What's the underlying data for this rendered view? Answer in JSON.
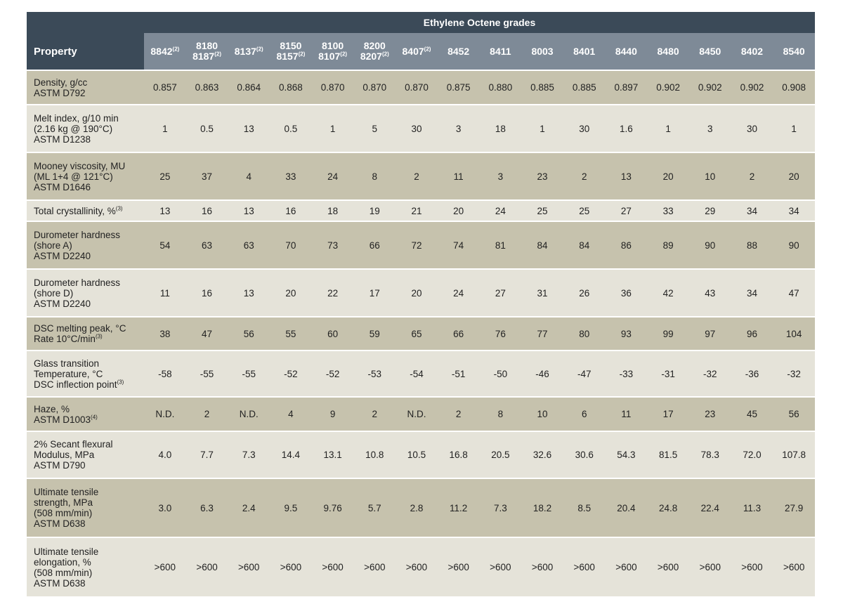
{
  "group_title": "Ethylene Octene grades",
  "property_header": "Property",
  "grades": [
    {
      "lines": [
        "8842"
      ],
      "sup": "(2)"
    },
    {
      "lines": [
        "8180",
        "8187"
      ],
      "sup": "(2)"
    },
    {
      "lines": [
        "8137"
      ],
      "sup": "(2)"
    },
    {
      "lines": [
        "8150",
        "8157"
      ],
      "sup": "(2)"
    },
    {
      "lines": [
        "8100",
        "8107"
      ],
      "sup": "(2)"
    },
    {
      "lines": [
        "8200",
        "8207"
      ],
      "sup": "(2)"
    },
    {
      "lines": [
        "8407"
      ],
      "sup": "(2)"
    },
    {
      "lines": [
        "8452"
      ],
      "sup": ""
    },
    {
      "lines": [
        "8411"
      ],
      "sup": ""
    },
    {
      "lines": [
        "8003"
      ],
      "sup": ""
    },
    {
      "lines": [
        "8401"
      ],
      "sup": ""
    },
    {
      "lines": [
        "8440"
      ],
      "sup": ""
    },
    {
      "lines": [
        "8480"
      ],
      "sup": ""
    },
    {
      "lines": [
        "8450"
      ],
      "sup": ""
    },
    {
      "lines": [
        "8402"
      ],
      "sup": ""
    },
    {
      "lines": [
        "8540"
      ],
      "sup": ""
    }
  ],
  "rows": [
    {
      "name": "density",
      "shade": "dark",
      "label": [
        "Density, g/cc",
        "ASTM D792"
      ],
      "label_sup": "",
      "values": [
        "0.857",
        "0.863",
        "0.864",
        "0.868",
        "0.870",
        "0.870",
        "0.870",
        "0.875",
        "0.880",
        "0.885",
        "0.885",
        "0.897",
        "0.902",
        "0.902",
        "0.902",
        "0.908"
      ]
    },
    {
      "name": "melt-index",
      "shade": "light",
      "label": [
        "Melt index, g/10 min",
        "(2.16 kg @ 190°C)",
        "ASTM D1238"
      ],
      "label_sup": "",
      "values": [
        "1",
        "0.5",
        "13",
        "0.5",
        "1",
        "5",
        "30",
        "3",
        "18",
        "1",
        "30",
        "1.6",
        "1",
        "3",
        "30",
        "1"
      ]
    },
    {
      "name": "mooney-viscosity",
      "shade": "dark",
      "label": [
        "Mooney viscosity, MU",
        "(ML 1+4 @ 121°C)",
        "ASTM D1646"
      ],
      "label_sup": "",
      "values": [
        "25",
        "37",
        "4",
        "33",
        "24",
        "8",
        "2",
        "11",
        "3",
        "23",
        "2",
        "13",
        "20",
        "10",
        "2",
        "20"
      ]
    },
    {
      "name": "total-crystallinity",
      "shade": "light",
      "label": [
        "Total crystallinity, %"
      ],
      "label_sup": "(3)",
      "values": [
        "13",
        "16",
        "13",
        "16",
        "18",
        "19",
        "21",
        "20",
        "24",
        "25",
        "25",
        "27",
        "33",
        "29",
        "34",
        "34"
      ]
    },
    {
      "name": "durometer-shore-a",
      "shade": "dark",
      "label": [
        "Durometer hardness",
        "(shore A)",
        "ASTM D2240"
      ],
      "label_sup": "",
      "values": [
        "54",
        "63",
        "63",
        "70",
        "73",
        "66",
        "72",
        "74",
        "81",
        "84",
        "84",
        "86",
        "89",
        "90",
        "88",
        "90"
      ]
    },
    {
      "name": "durometer-shore-d",
      "shade": "light",
      "label": [
        "Durometer hardness",
        "(shore D)",
        "ASTM D2240"
      ],
      "label_sup": "",
      "values": [
        "11",
        "16",
        "13",
        "20",
        "22",
        "17",
        "20",
        "24",
        "27",
        "31",
        "26",
        "36",
        "42",
        "43",
        "34",
        "47"
      ]
    },
    {
      "name": "dsc-melting-peak",
      "shade": "dark",
      "label": [
        "DSC melting peak, °C",
        "Rate 10°C/min"
      ],
      "label_sup": "(3)",
      "values": [
        "38",
        "47",
        "56",
        "55",
        "60",
        "59",
        "65",
        "66",
        "76",
        "77",
        "80",
        "93",
        "99",
        "97",
        "96",
        "104"
      ]
    },
    {
      "name": "glass-transition",
      "shade": "light",
      "label": [
        "Glass transition",
        "Temperature, °C",
        "DSC inflection point"
      ],
      "label_sup": "(3)",
      "values": [
        "-58",
        "-55",
        "-55",
        "-52",
        "-52",
        "-53",
        "-54",
        "-51",
        "-50",
        "-46",
        "-47",
        "-33",
        "-31",
        "-32",
        "-36",
        "-32"
      ]
    },
    {
      "name": "haze",
      "shade": "dark",
      "label": [
        "Haze, %",
        "ASTM D1003"
      ],
      "label_sup": "(4)",
      "values": [
        "N.D.",
        "2",
        "N.D.",
        "4",
        "9",
        "2",
        "N.D.",
        "2",
        "8",
        "10",
        "6",
        "11",
        "17",
        "23",
        "45",
        "56"
      ]
    },
    {
      "name": "secant-flexural-modulus",
      "shade": "light",
      "label": [
        "2% Secant flexural",
        "Modulus, MPa",
        "ASTM D790"
      ],
      "label_sup": "",
      "values": [
        "4.0",
        "7.7",
        "7.3",
        "14.4",
        "13.1",
        "10.8",
        "10.5",
        "16.8",
        "20.5",
        "32.6",
        "30.6",
        "54.3",
        "81.5",
        "78.3",
        "72.0",
        "107.8"
      ]
    },
    {
      "name": "ultimate-tensile-strength",
      "shade": "dark",
      "label": [
        "Ultimate tensile",
        "strength, MPa",
        "(508 mm/min)",
        "ASTM D638"
      ],
      "label_sup": "",
      "values": [
        "3.0",
        "6.3",
        "2.4",
        "9.5",
        "9.76",
        "5.7",
        "2.8",
        "11.2",
        "7.3",
        "18.2",
        "8.5",
        "20.4",
        "24.8",
        "22.4",
        "11.3",
        "27.9"
      ]
    },
    {
      "name": "ultimate-tensile-elongation",
      "shade": "light",
      "label": [
        "Ultimate tensile",
        "elongation, %",
        "(508 mm/min)",
        "ASTM D638"
      ],
      "label_sup": "",
      "values": [
        ">600",
        ">600",
        ">600",
        ">600",
        ">600",
        ">600",
        ">600",
        ">600",
        ">600",
        ">600",
        ">600",
        ">600",
        ">600",
        ">600",
        ">600",
        ">600"
      ]
    }
  ]
}
